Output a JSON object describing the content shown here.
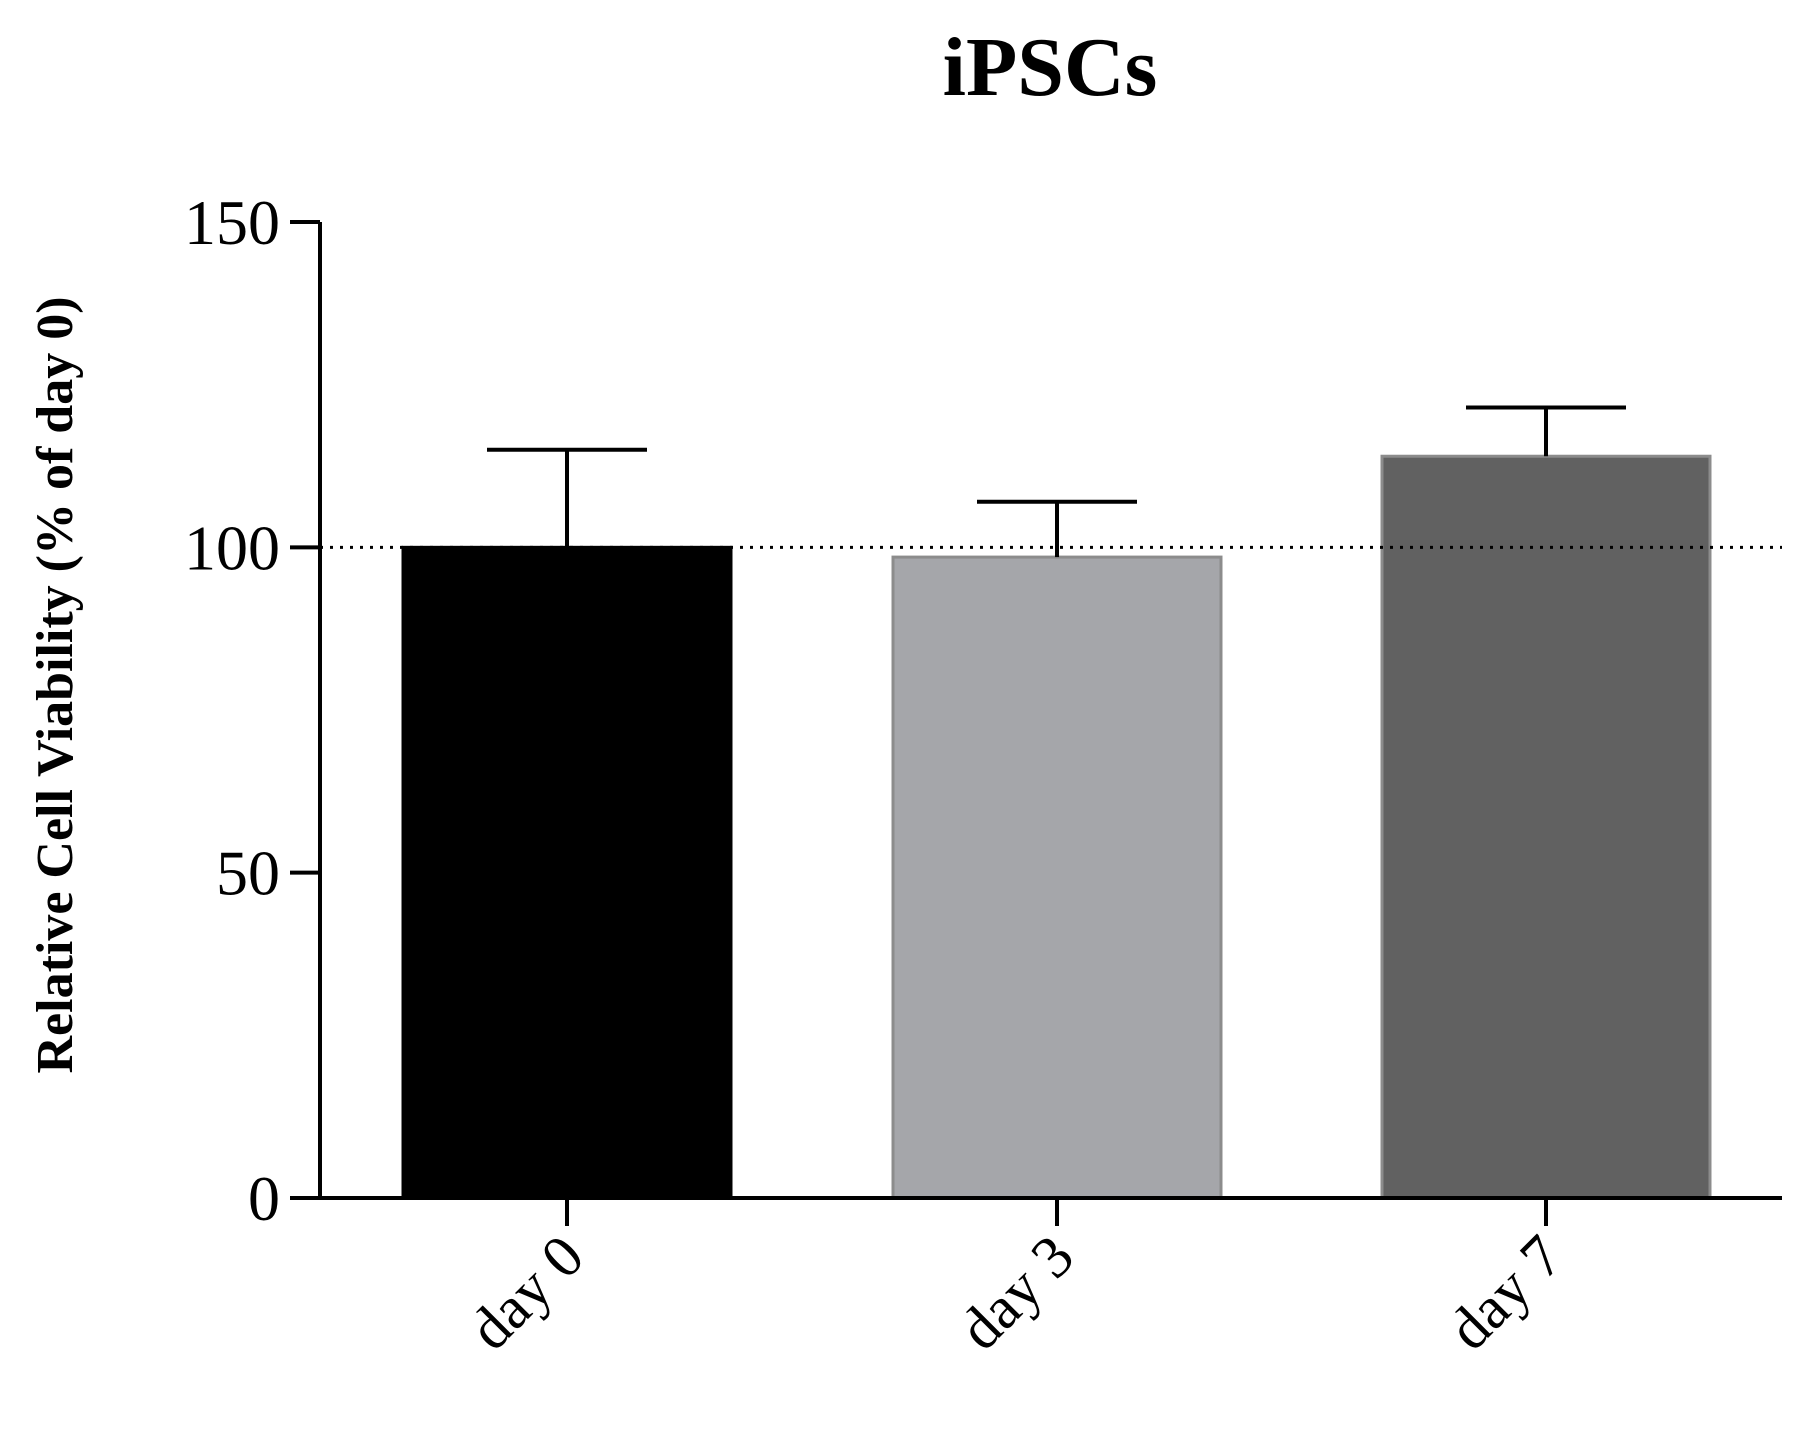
{
  "chart_data": {
    "type": "bar",
    "title": "iPSCs",
    "xlabel": "",
    "ylabel": "Relative Cell Viability (% of day 0)",
    "ylim": [
      0,
      150
    ],
    "yticks": [
      0,
      50,
      100,
      150
    ],
    "categories": [
      "day 0",
      "day 3",
      "day 7"
    ],
    "values": [
      100,
      98.5,
      114
    ],
    "errors": [
      15,
      8.5,
      7.5
    ],
    "bar_colors": [
      "#000000",
      "#a5a6aa",
      "#616161"
    ],
    "reference_line": {
      "value": 100,
      "style": "dotted"
    },
    "grid": false,
    "legend": "none"
  }
}
